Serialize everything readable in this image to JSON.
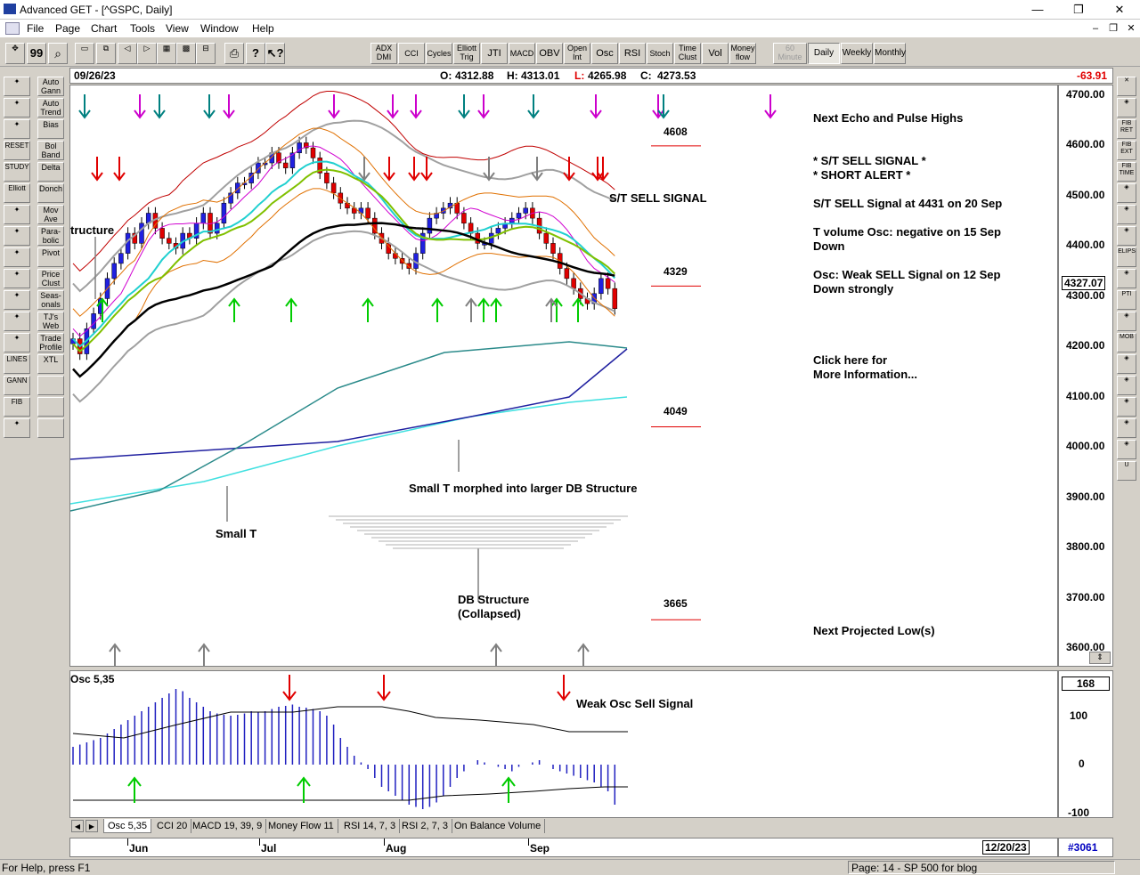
{
  "window": {
    "title": "Advanced GET - [^GSPC, Daily]",
    "minimize": "—",
    "restore": "❐",
    "close": "✕"
  },
  "menu": [
    "File",
    "Page",
    "Chart",
    "Tools",
    "View",
    "Window",
    "Help"
  ],
  "toolbar": {
    "studies": [
      {
        "label": "ADX\nDMI"
      },
      {
        "label": "CCI"
      },
      {
        "label": "Cycles"
      },
      {
        "label": "Elliott\nTrig"
      },
      {
        "label": "JTI"
      },
      {
        "label": "MACD"
      },
      {
        "label": "OBV"
      },
      {
        "label": "Open\nInt"
      },
      {
        "label": "Osc"
      },
      {
        "label": "RSI"
      },
      {
        "label": "Stoch"
      },
      {
        "label": "Time\nClust"
      },
      {
        "label": "Vol"
      },
      {
        "label": "Money\nflow"
      }
    ],
    "periods": [
      {
        "label": "60\nMinute",
        "state": "disabled"
      },
      {
        "label": "Daily",
        "state": "selected"
      },
      {
        "label": "Weekly",
        "state": "normal"
      },
      {
        "label": "Monthly",
        "state": "normal"
      }
    ]
  },
  "left_tools": [
    [
      "",
      "Auto\nGann"
    ],
    [
      "",
      "Auto\nTrend"
    ],
    [
      "",
      "Bias"
    ],
    [
      "RESET",
      "Bol\nBand"
    ],
    [
      "STUDY",
      "Delta"
    ],
    [
      "Elliott",
      "Donch"
    ],
    [
      "",
      "Mov\nAve"
    ],
    [
      "",
      "Para-\nbolic"
    ],
    [
      "",
      "Pivot"
    ],
    [
      "",
      "Price\nClust"
    ],
    [
      "",
      "Seas-\nonals"
    ],
    [
      "",
      "TJ's\nWeb"
    ],
    [
      "",
      "Trade\nProfile"
    ],
    [
      "LINES",
      "XTL"
    ],
    [
      "GANN",
      ""
    ],
    [
      "FIB",
      ""
    ],
    [
      "",
      ""
    ]
  ],
  "right_tools": [
    "✕",
    "",
    "FIB\nRET",
    "FIB\nEXT",
    "FIB\nTIME",
    "",
    "",
    "",
    "ELIPS",
    "",
    "PTI",
    "",
    "MOB",
    "",
    "",
    "",
    "",
    "",
    "U"
  ],
  "info": {
    "date": "09/26/23",
    "open_label": "O:",
    "open": "4312.88",
    "high_label": "H:",
    "high": "4313.01",
    "low_label": "L:",
    "low": "4265.98",
    "close_label": "C:",
    "close": "4273.53",
    "change": "-63.91"
  },
  "price_axis": {
    "ticks": [
      "4700.00",
      "4600.00",
      "4500.00",
      "4400.00",
      "4300.00",
      "4200.00",
      "4100.00",
      "4000.00",
      "3900.00",
      "3800.00",
      "3700.00",
      "3600.00"
    ],
    "current": "4327.07"
  },
  "chart_labels": {
    "level_4608": "4608",
    "level_4329": "4329",
    "level_4049": "4049",
    "level_3665": "3665",
    "st_sell_signal": "S/T SELL SIGNAL",
    "structure": "tructure",
    "small_t_morphed": "Small T morphed into larger DB Structure",
    "small_t": "Small T",
    "db_structure_line1": "DB Structure",
    "db_structure_line2": "(Collapsed)"
  },
  "notes": {
    "next_echo": "Next Echo and Pulse Highs",
    "st_sell": "* S/T SELL SIGNAL *",
    "short_alert": "* SHORT ALERT *",
    "st_sell_at": "S/T SELL Signal at 4431 on 20 Sep",
    "t_volume_line1": "T volume Osc: negative on 15 Sep",
    "t_volume_line2": "Down",
    "osc_weak_line1": "Osc: Weak SELL Signal on 12 Sep",
    "osc_weak_line2": "Down strongly",
    "click_line1": "Click here for",
    "click_line2": "More Information...",
    "next_low": "Next Projected Low(s)"
  },
  "oscillator": {
    "title": "Osc 5,35",
    "signal_label": "Weak Osc Sell Signal",
    "current": "168",
    "ticks": [
      "100",
      "0",
      "-100"
    ]
  },
  "tabs": [
    "Osc 5,35",
    "CCI 20",
    "MACD 19, 39, 9",
    "Money Flow 11",
    "RSI 14, 7, 3",
    "RSI 2, 7, 3",
    "On Balance Volume"
  ],
  "date_axis": {
    "months": [
      "Jun",
      "Jul",
      "Aug",
      "Sep"
    ],
    "end_date": "12/20/23",
    "bar_number": "#3061"
  },
  "status": {
    "help": "For Help, press F1",
    "page": "Page: 14 - SP 500 for blog"
  },
  "colors": {
    "up_candle": "#2020e0",
    "down_candle": "#e00000",
    "green_arrow": "#00cc00",
    "red_arrow": "#e00000",
    "purple_arrow": "#cc00cc",
    "teal_arrow": "#008080",
    "gray_arrow": "#808080",
    "osc_bars": "#2020c0"
  }
}
